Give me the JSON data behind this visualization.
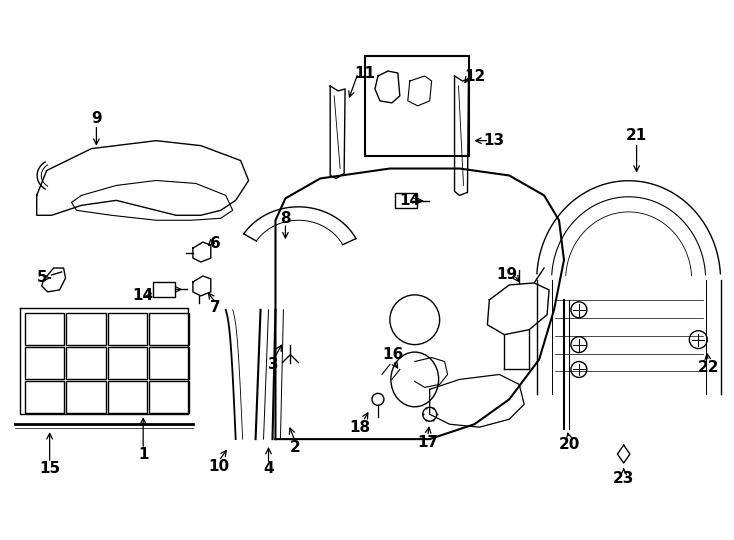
{
  "bg": "#ffffff",
  "lc": "#000000",
  "fig_w": 7.34,
  "fig_h": 5.4,
  "dpi": 100
}
